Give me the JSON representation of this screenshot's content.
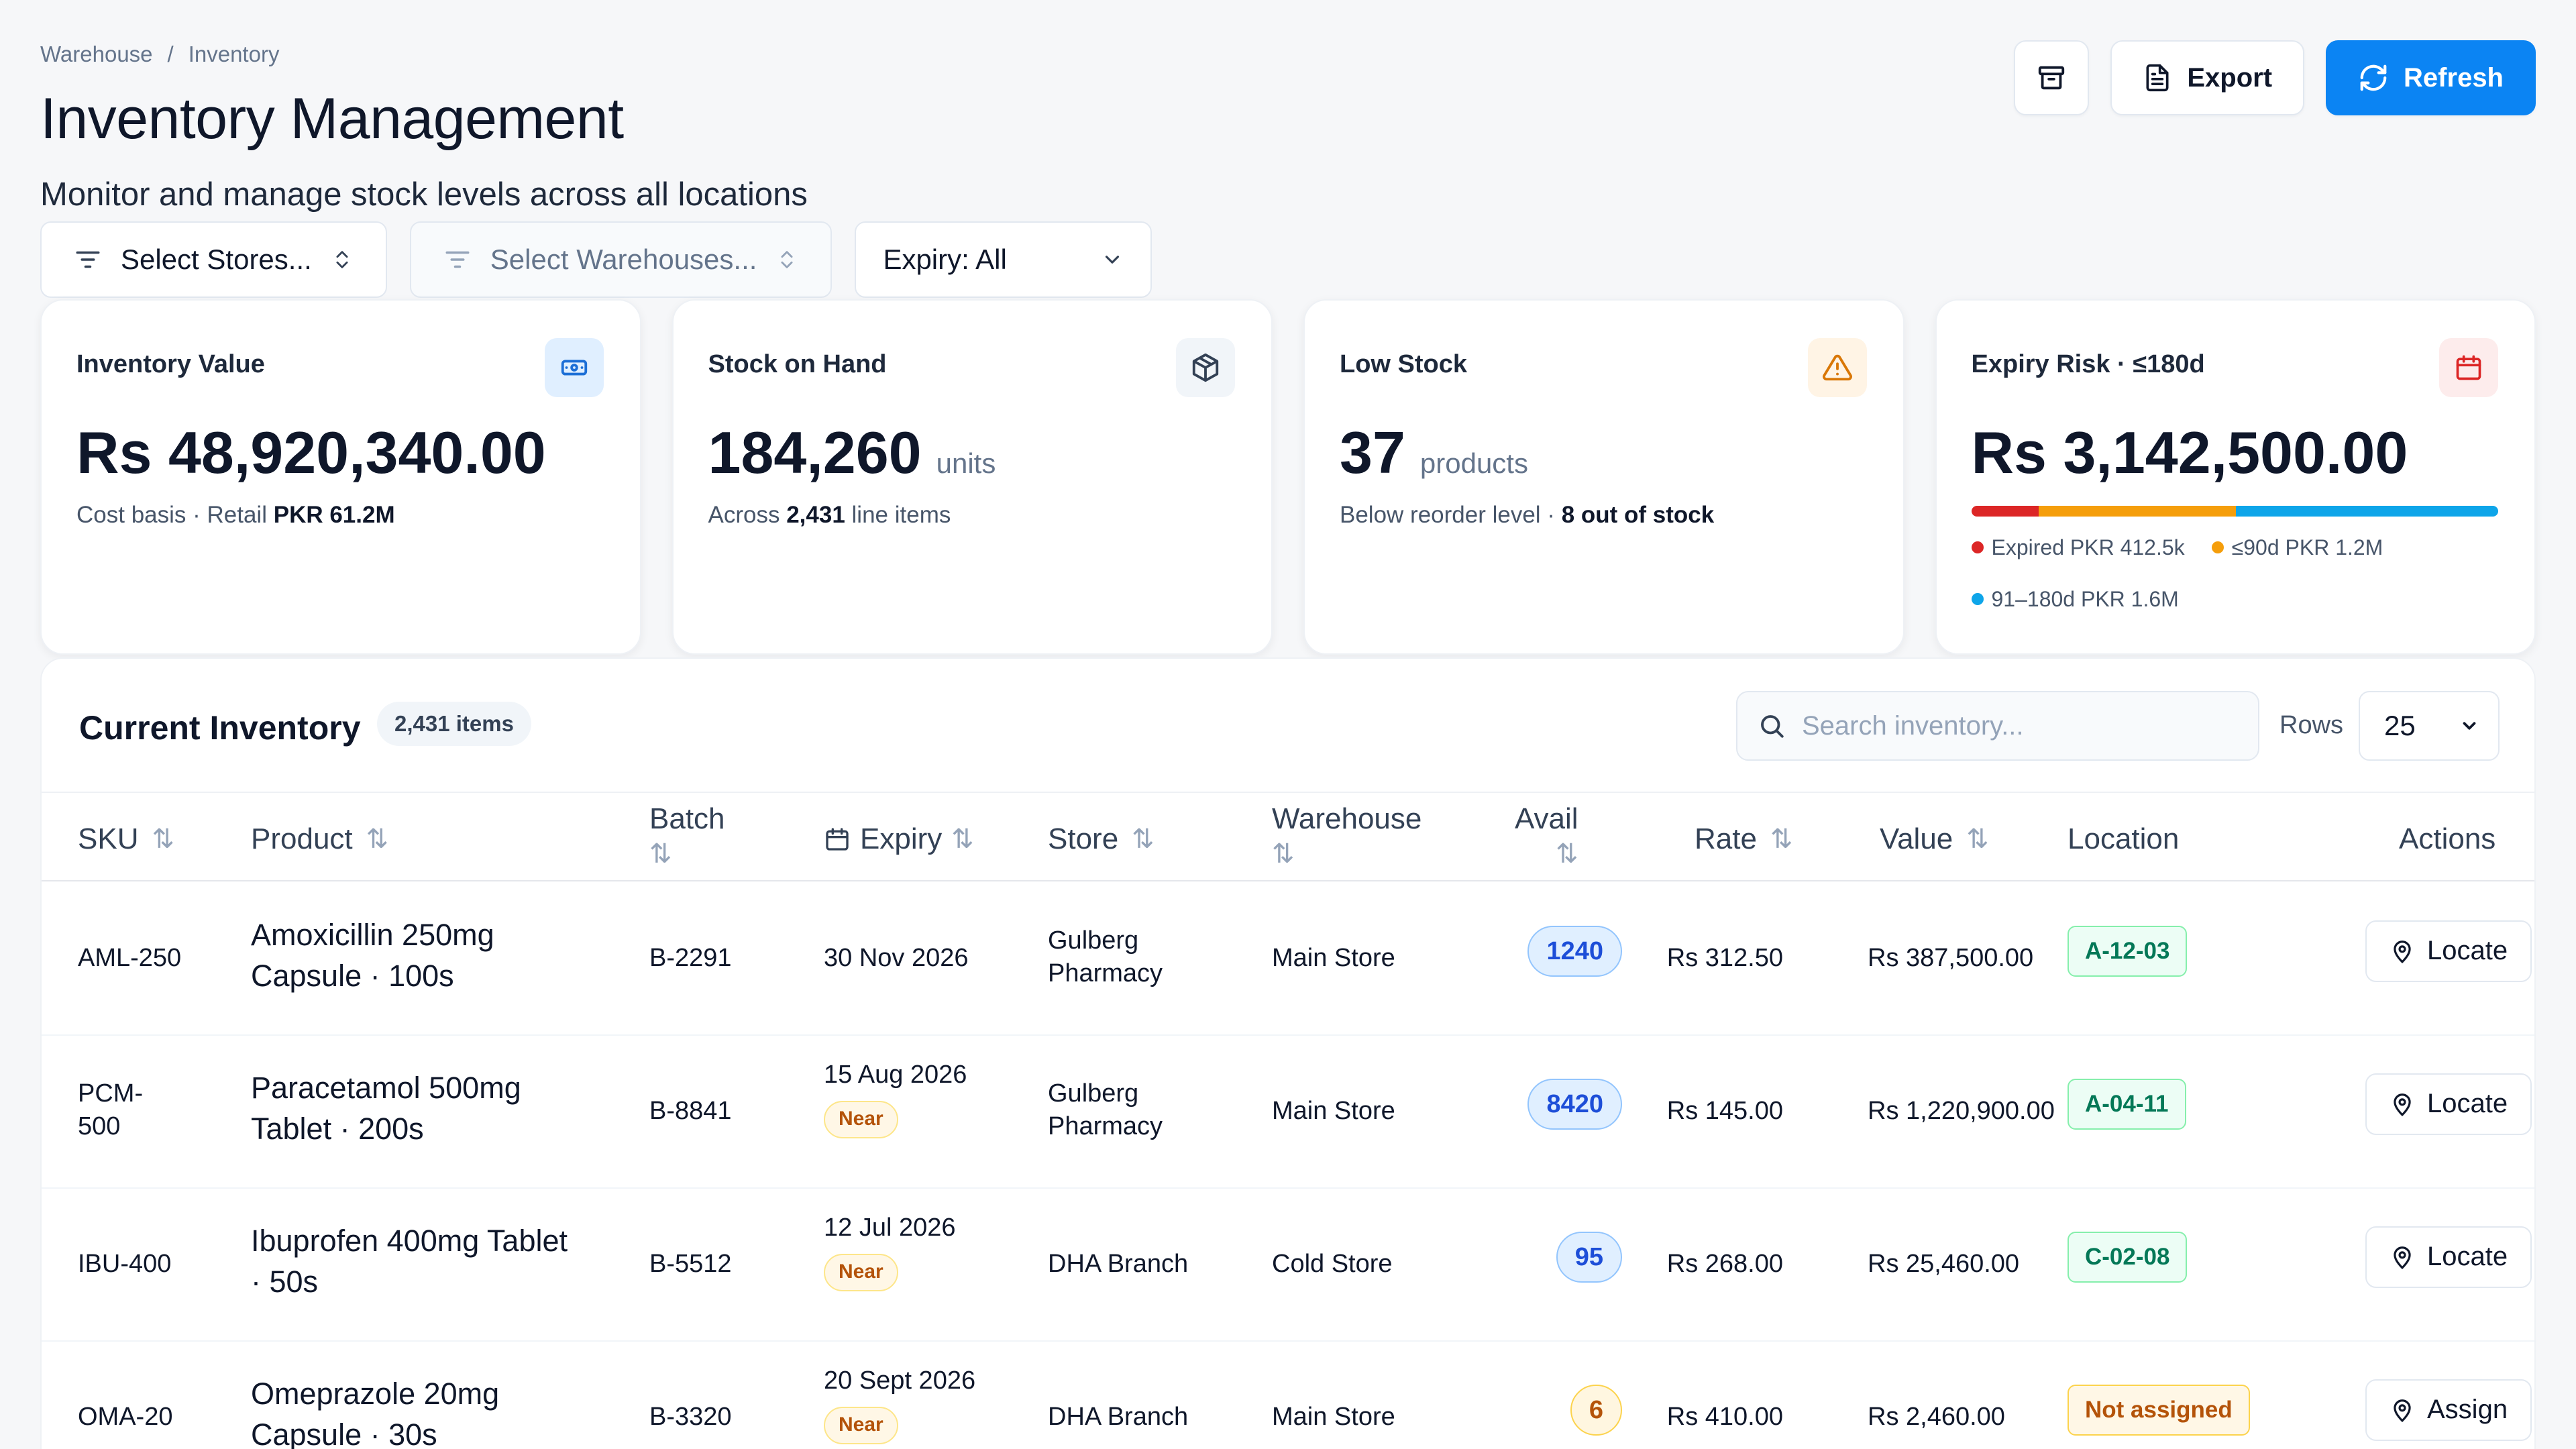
{
  "breadcrumb": {
    "root": "Warehouse",
    "separator": "/",
    "current": "Inventory"
  },
  "header": {
    "title": "Inventory Management",
    "subtitle": "Monitor and manage stock levels across all locations",
    "export_label": "Export",
    "refresh_label": "Refresh"
  },
  "filters": {
    "stores": "Select Stores...",
    "warehouses": "Select Warehouses...",
    "expiry": "Expiry: All"
  },
  "kpis": {
    "inventory_value": {
      "title": "Inventory Value",
      "value": "Rs 48,920,340.00",
      "sub_prefix": "Cost basis · Retail ",
      "sub_bold": "PKR 61.2M"
    },
    "stock_on_hand": {
      "title": "Stock on Hand",
      "value": "184,260",
      "unit": "units",
      "sub_prefix": "Across ",
      "sub_bold": "2,431",
      "sub_suffix": " line items"
    },
    "low_stock": {
      "title": "Low Stock",
      "value": "37",
      "unit": "products",
      "sub_prefix": "Below reorder level · ",
      "sub_bold": "8 out of stock"
    },
    "expiry_risk": {
      "title": "Expiry Risk · ≤180d",
      "value": "Rs 3,142,500.00",
      "segments": [
        {
          "label": "Expired PKR 412.5k",
          "color": "#dc2626",
          "amount": 412.5
        },
        {
          "label": "≤90d PKR 1.2M",
          "color": "#f59e0b",
          "amount": 1200
        },
        {
          "label": "91–180d PKR 1.6M",
          "color": "#0ea5e9",
          "amount": 1600
        }
      ]
    }
  },
  "inventory": {
    "title": "Current Inventory",
    "count": "2,431 items",
    "search_placeholder": "Search inventory...",
    "rows_label": "Rows",
    "rows_value": "25",
    "columns": {
      "sku": "SKU",
      "product": "Product",
      "batch": "Batch",
      "expiry": "Expiry",
      "store": "Store",
      "warehouse": "Warehouse",
      "avail": "Avail",
      "rate": "Rate",
      "value": "Value",
      "location": "Location",
      "actions": "Actions"
    },
    "near_label": "Near",
    "rows": [
      {
        "sku": "AML-250",
        "product_line1": "Amoxicillin 250mg",
        "product_line2": "Capsule · 100s",
        "batch": "B-2291",
        "expiry": "30 Nov 2026",
        "store_line1": "Gulberg",
        "store_line2": "Pharmacy",
        "warehouse": "Main Store",
        "avail": "1240",
        "rate": "Rs 312.50",
        "value": "Rs 387,500.00",
        "location": "A-12-03",
        "action": "Locate"
      },
      {
        "sku_line1": "PCM-",
        "sku_line2": "500",
        "product_line1": "Paracetamol 500mg",
        "product_line2": "Tablet · 200s",
        "batch": "B-8841",
        "expiry": "15 Aug 2026",
        "store_line1": "Gulberg",
        "store_line2": "Pharmacy",
        "warehouse": "Main Store",
        "avail": "8420",
        "rate": "Rs 145.00",
        "value": "Rs 1,220,900.00",
        "location": "A-04-11",
        "action": "Locate"
      },
      {
        "sku": "IBU-400",
        "product_line1": "Ibuprofen 400mg Tablet",
        "product_line2": "· 50s",
        "batch": "B-5512",
        "expiry": "12 Jul 2026",
        "store": "DHA Branch",
        "warehouse": "Cold Store",
        "avail": "95",
        "rate": "Rs 268.00",
        "value": "Rs 25,460.00",
        "location": "C-02-08",
        "action": "Locate"
      },
      {
        "sku": "OMA-20",
        "product_line1": "Omeprazole 20mg",
        "product_line2": "Capsule · 30s",
        "batch": "B-3320",
        "expiry": "20 Sept 2026",
        "store": "DHA Branch",
        "warehouse": "Main Store",
        "avail": "6",
        "rate": "Rs 410.00",
        "value": "Rs 2,460.00",
        "location": "Not assigned",
        "action": "Assign"
      }
    ]
  },
  "colors": {
    "accent": "#0b84f3",
    "ok": "#047857",
    "warn": "#b45309",
    "danger": "#dc2626"
  }
}
